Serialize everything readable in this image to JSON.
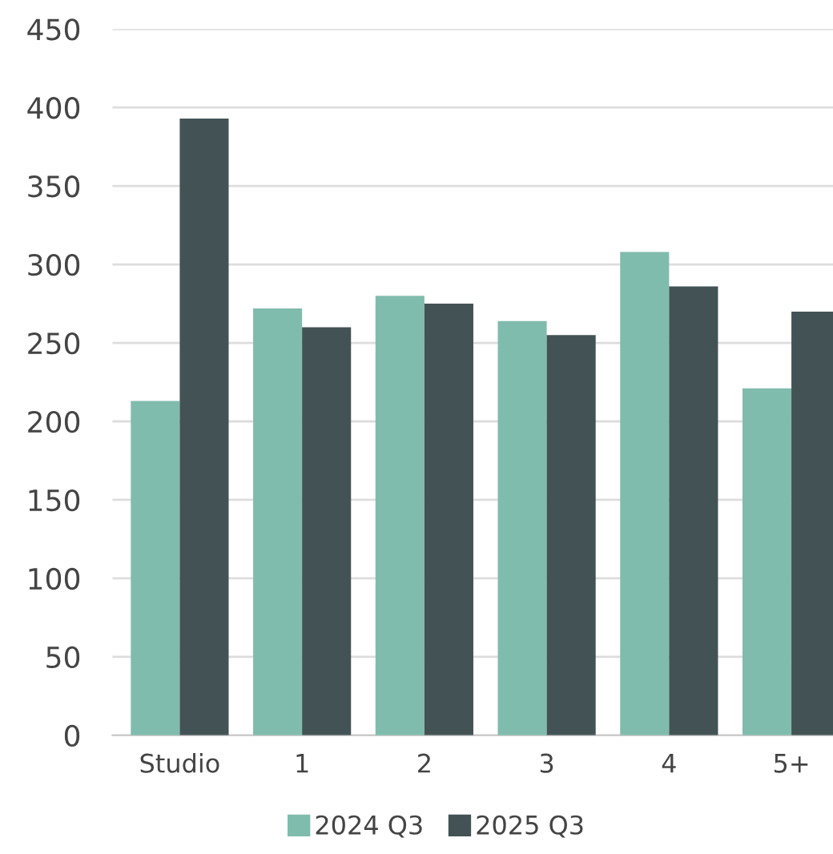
{
  "chart_data": {
    "type": "bar",
    "categories": [
      "Studio",
      "1",
      "2",
      "3",
      "4",
      "5+"
    ],
    "series": [
      {
        "name": "2024 Q3",
        "color": "#80bcad",
        "values": [
          213,
          272,
          280,
          264,
          308,
          221
        ]
      },
      {
        "name": "2025 Q3",
        "color": "#435355",
        "values": [
          393,
          260,
          275,
          255,
          286,
          270
        ]
      }
    ],
    "ylim": [
      0,
      450
    ],
    "yticks": [
      0,
      50,
      100,
      150,
      200,
      250,
      300,
      350,
      400,
      450
    ],
    "grid": "y",
    "legend": "bottom"
  }
}
